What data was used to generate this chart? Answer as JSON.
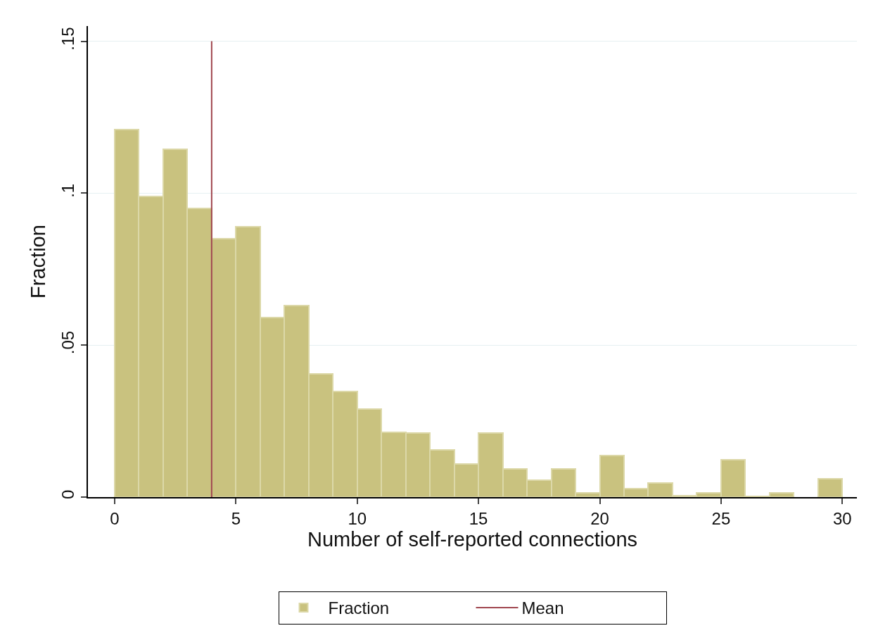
{
  "chart_data": {
    "type": "histogram",
    "xlabel": "Number of self-reported connections",
    "ylabel": "Fraction",
    "bins": [
      0,
      1,
      2,
      3,
      4,
      5,
      6,
      7,
      8,
      9,
      10,
      11,
      12,
      13,
      14,
      15,
      16,
      17,
      18,
      19,
      20,
      21,
      22,
      23,
      24,
      25,
      26,
      27,
      28,
      29,
      30
    ],
    "series": [
      {
        "name": "Fraction",
        "color": "#c9c27f",
        "values": [
          0.121,
          0.099,
          0.1145,
          0.095,
          0.085,
          0.089,
          0.059,
          0.063,
          0.0405,
          0.0347,
          0.029,
          0.0214,
          0.021,
          0.0156,
          0.011,
          0.021,
          0.0093,
          0.0056,
          0.0093,
          0.0013,
          0.0136,
          0.0028,
          0.0046,
          0.0005,
          0.0013,
          0.0122,
          0.0002,
          0.0013,
          0,
          0.006
        ]
      }
    ],
    "ref_lines": [
      {
        "axis": "x",
        "value": 4,
        "label": "Mean",
        "color": "#a0464f"
      }
    ],
    "xlim": [
      -1.1,
      30.6
    ],
    "xticks": [
      0,
      5,
      10,
      15,
      20,
      25,
      30
    ],
    "ylim": [
      0,
      0.155
    ],
    "yticks": [
      {
        "value": 0,
        "label": "0"
      },
      {
        "value": 0.05,
        "label": ".05"
      },
      {
        "value": 0.1,
        "label": ".1"
      },
      {
        "value": 0.15,
        "label": ".15"
      }
    ],
    "grid": "y",
    "legend": "bottom"
  }
}
